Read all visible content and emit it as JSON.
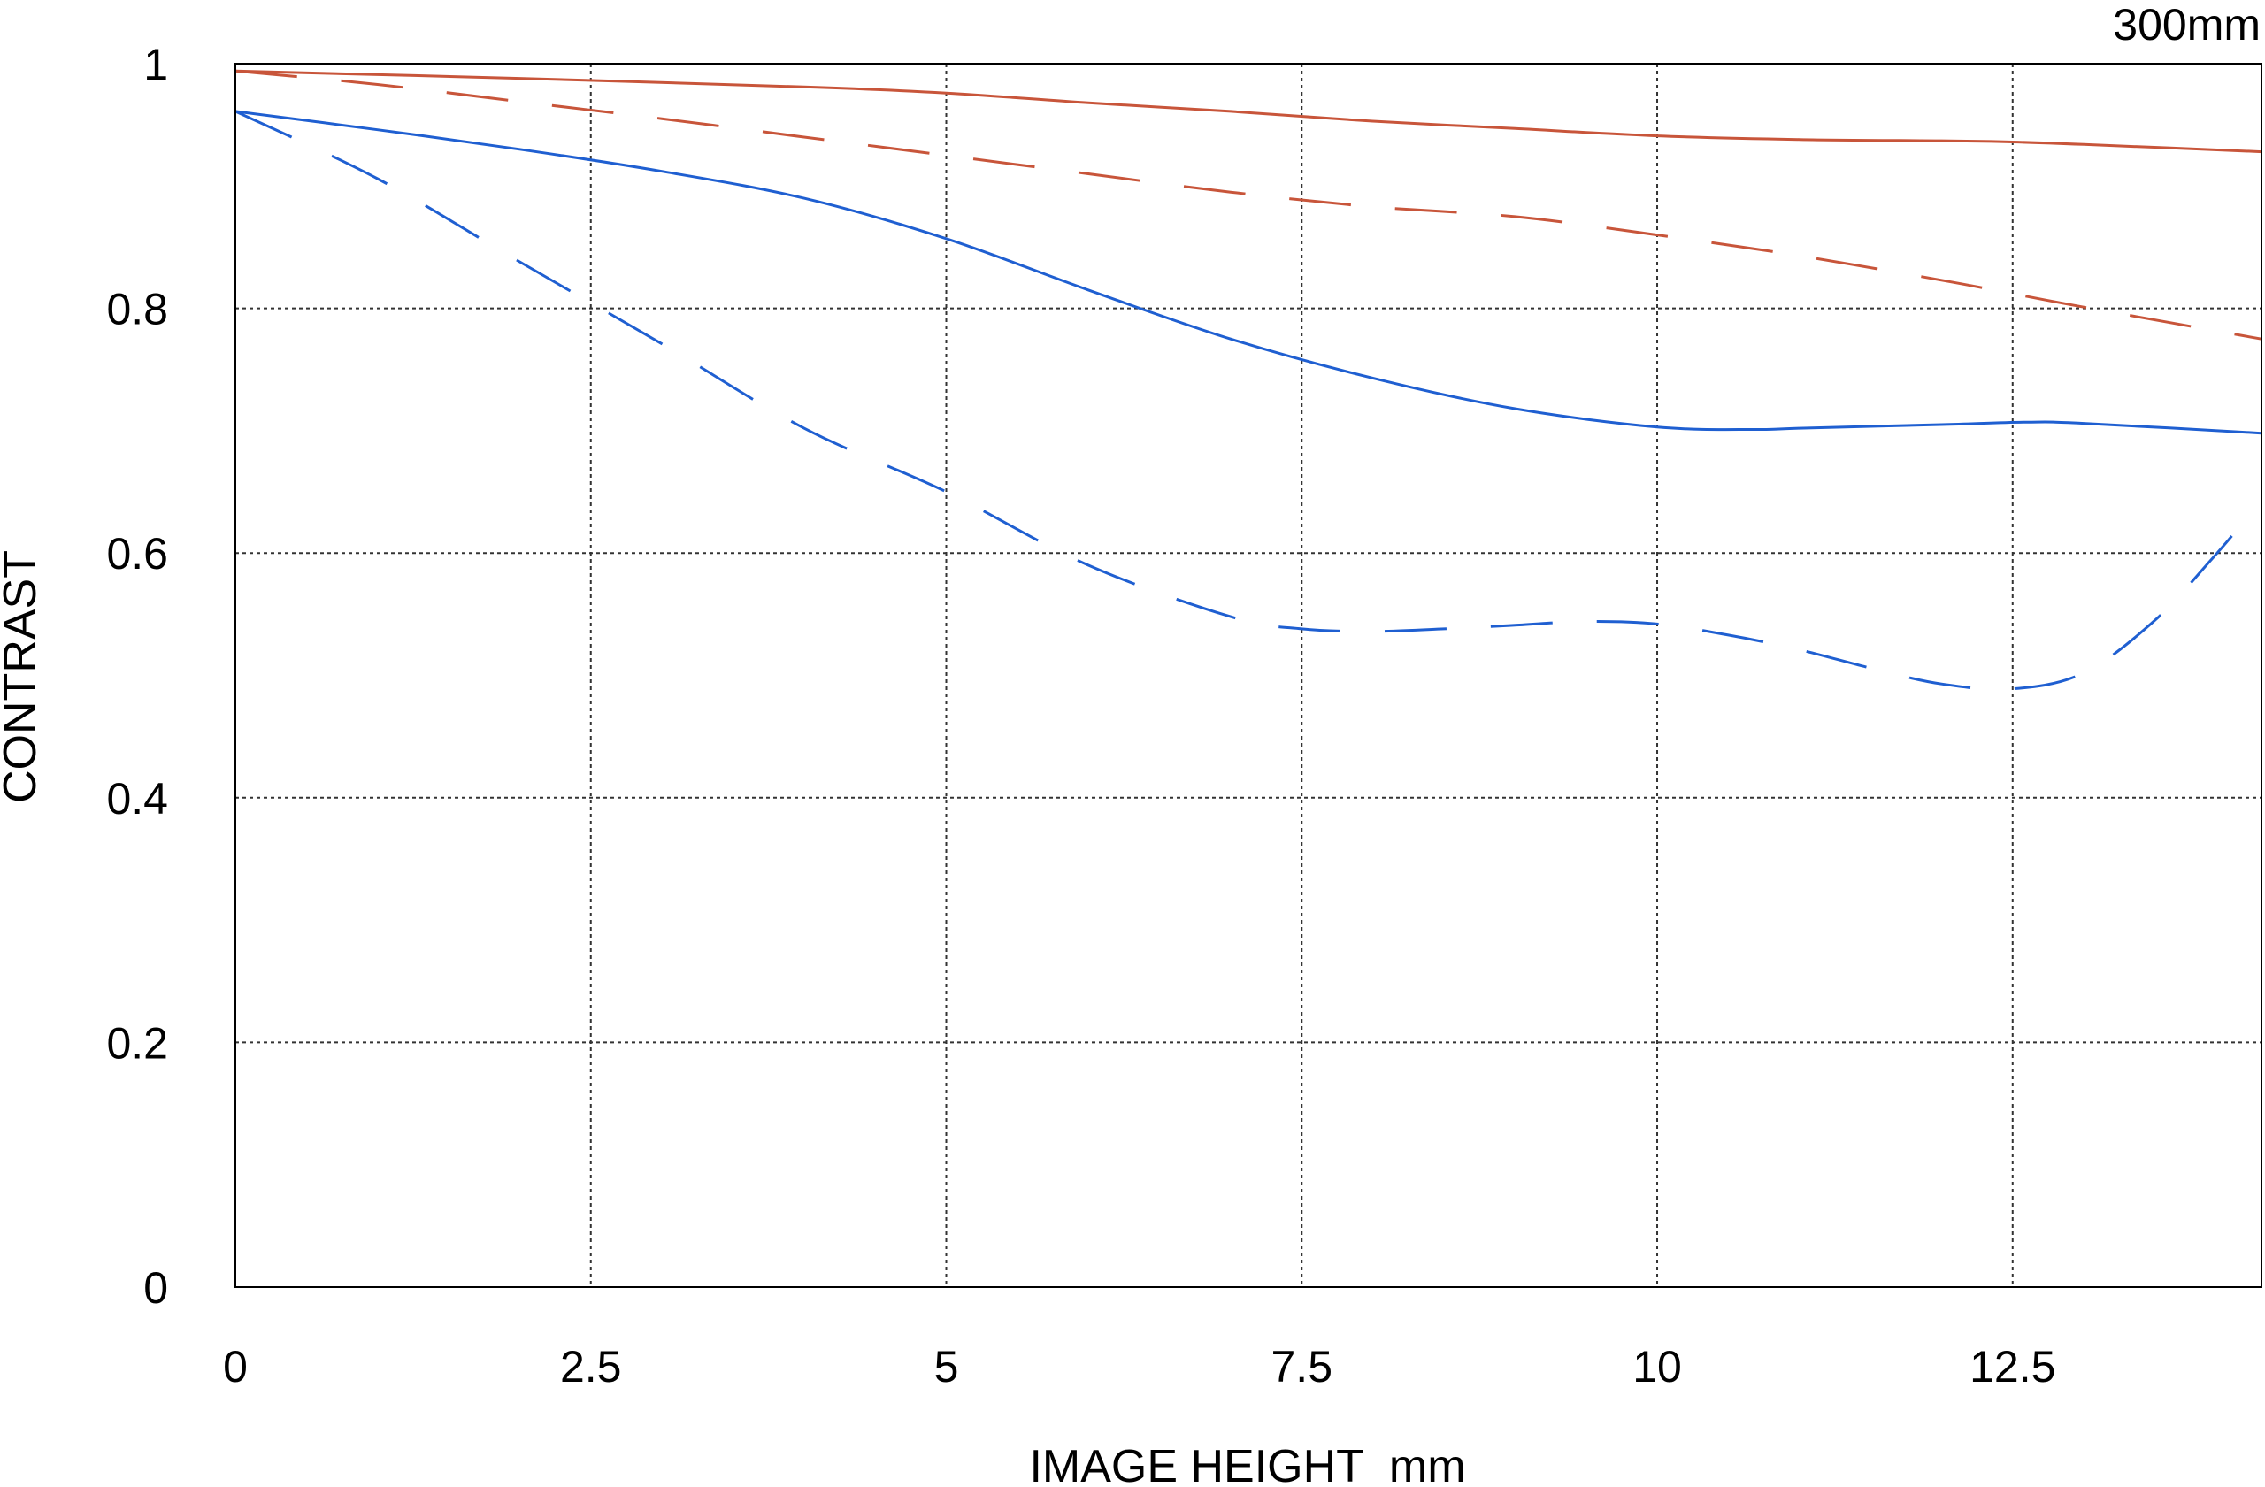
{
  "chart_data": {
    "type": "line",
    "annotation": "300mm",
    "xlabel": "IMAGE HEIGHT  mm",
    "ylabel": "CONTRAST",
    "xlim": [
      0,
      14.25
    ],
    "ylim": [
      0,
      1
    ],
    "x_ticks": [
      0,
      2.5,
      5,
      7.5,
      10,
      12.5
    ],
    "x_tick_labels": [
      "0",
      "2.5",
      "5",
      "7.5",
      "10",
      "12.5"
    ],
    "y_ticks": [
      0,
      0.2,
      0.4,
      0.6,
      0.8,
      1
    ],
    "y_tick_labels": [
      "0",
      "0.2",
      "0.4",
      "0.6",
      "0.8",
      "1"
    ],
    "grid": true,
    "series": [
      {
        "color": "#c8553a",
        "dash": "solid",
        "points": [
          [
            0,
            0.994
          ],
          [
            2,
            0.988
          ],
          [
            4,
            0.981
          ],
          [
            5,
            0.976
          ],
          [
            6,
            0.968
          ],
          [
            7,
            0.961
          ],
          [
            8,
            0.953
          ],
          [
            9,
            0.947
          ],
          [
            10,
            0.941
          ],
          [
            11,
            0.938
          ],
          [
            12,
            0.937
          ],
          [
            12.5,
            0.936
          ],
          [
            13,
            0.934
          ],
          [
            14.25,
            0.928
          ]
        ]
      },
      {
        "color": "#c8553a",
        "dash": "dashed",
        "points": [
          [
            0,
            0.994
          ],
          [
            1,
            0.983
          ],
          [
            2,
            0.969
          ],
          [
            3,
            0.955
          ],
          [
            4,
            0.94
          ],
          [
            5,
            0.925
          ],
          [
            6,
            0.91
          ],
          [
            7,
            0.895
          ],
          [
            8,
            0.883
          ],
          [
            9,
            0.875
          ],
          [
            10,
            0.86
          ],
          [
            11,
            0.843
          ],
          [
            12,
            0.823
          ],
          [
            12.5,
            0.812
          ],
          [
            13,
            0.801
          ],
          [
            14.25,
            0.775
          ]
        ]
      },
      {
        "color": "#1f5fd1",
        "dash": "solid",
        "points": [
          [
            0,
            0.961
          ],
          [
            1,
            0.946
          ],
          [
            2,
            0.93
          ],
          [
            3,
            0.912
          ],
          [
            4,
            0.89
          ],
          [
            5,
            0.857
          ],
          [
            6,
            0.815
          ],
          [
            7,
            0.775
          ],
          [
            8,
            0.743
          ],
          [
            9,
            0.718
          ],
          [
            10,
            0.703
          ],
          [
            10.7,
            0.701
          ],
          [
            11,
            0.702
          ],
          [
            12,
            0.705
          ],
          [
            12.6,
            0.707
          ],
          [
            13,
            0.706
          ],
          [
            14.25,
            0.698
          ]
        ]
      },
      {
        "color": "#1f5fd1",
        "dash": "dashed",
        "points": [
          [
            0,
            0.961
          ],
          [
            1,
            0.906
          ],
          [
            2,
            0.838
          ],
          [
            3,
            0.771
          ],
          [
            4,
            0.702
          ],
          [
            5,
            0.65
          ],
          [
            6,
            0.59
          ],
          [
            7,
            0.548
          ],
          [
            7.5,
            0.538
          ],
          [
            8,
            0.536
          ],
          [
            8.5,
            0.538
          ],
          [
            9,
            0.541
          ],
          [
            9.5,
            0.544
          ],
          [
            10,
            0.542
          ],
          [
            10.5,
            0.533
          ],
          [
            11,
            0.521
          ],
          [
            11.5,
            0.506
          ],
          [
            12,
            0.493
          ],
          [
            12.5,
            0.489
          ],
          [
            13,
            0.502
          ],
          [
            13.5,
            0.545
          ],
          [
            13.9,
            0.595
          ],
          [
            14.1,
            0.622
          ]
        ]
      }
    ]
  }
}
